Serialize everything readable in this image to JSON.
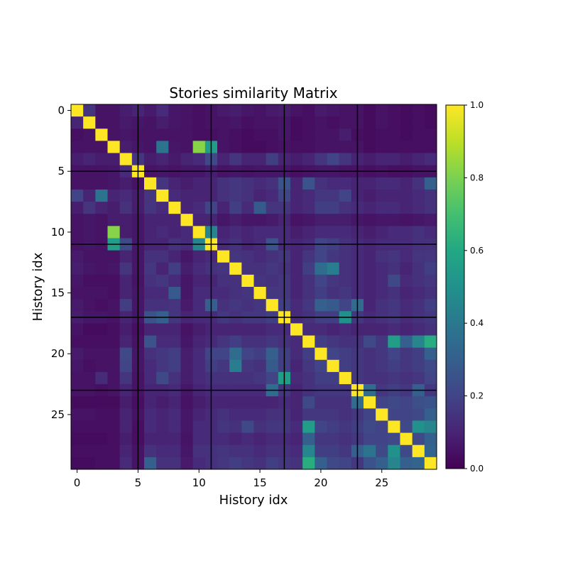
{
  "chart_data": {
    "type": "heatmap",
    "title": "Stories similarity Matrix",
    "xlabel": "History idx",
    "ylabel": "History idx",
    "x_ticks": [
      0,
      5,
      10,
      15,
      20,
      25
    ],
    "y_ticks": [
      0,
      5,
      10,
      15,
      20,
      25
    ],
    "size": 30,
    "block_size": 6,
    "colormap": "viridis",
    "clim": [
      0.0,
      1.0
    ],
    "colorbar_ticks": [
      "0.0",
      "0.2",
      "0.4",
      "0.6",
      "0.8",
      "1.0"
    ],
    "matrix": [
      [
        1.0,
        0.15,
        0.05,
        0.05,
        0.08,
        0.1,
        0.07,
        0.12,
        0.06,
        0.05,
        0.04,
        0.05,
        0.07,
        0.08,
        0.06,
        0.05,
        0.07,
        0.08,
        0.05,
        0.04,
        0.07,
        0.06,
        0.05,
        0.05,
        0.03,
        0.05,
        0.04,
        0.03,
        0.04,
        0.03
      ],
      [
        0.1,
        1.0,
        0.05,
        0.05,
        0.07,
        0.06,
        0.05,
        0.08,
        0.06,
        0.05,
        0.04,
        0.05,
        0.05,
        0.06,
        0.04,
        0.05,
        0.05,
        0.06,
        0.03,
        0.04,
        0.05,
        0.04,
        0.05,
        0.05,
        0.03,
        0.05,
        0.04,
        0.03,
        0.04,
        0.03
      ],
      [
        0.04,
        0.05,
        1.0,
        0.05,
        0.06,
        0.05,
        0.05,
        0.05,
        0.05,
        0.05,
        0.04,
        0.04,
        0.05,
        0.04,
        0.03,
        0.04,
        0.04,
        0.06,
        0.03,
        0.04,
        0.05,
        0.05,
        0.08,
        0.04,
        0.03,
        0.04,
        0.04,
        0.03,
        0.04,
        0.04
      ],
      [
        0.05,
        0.05,
        0.05,
        1.0,
        0.08,
        0.06,
        0.05,
        0.38,
        0.06,
        0.05,
        0.82,
        0.55,
        0.05,
        0.04,
        0.03,
        0.03,
        0.04,
        0.05,
        0.04,
        0.04,
        0.05,
        0.05,
        0.05,
        0.05,
        0.03,
        0.04,
        0.04,
        0.04,
        0.04,
        0.04
      ],
      [
        0.08,
        0.1,
        0.08,
        0.08,
        1.0,
        0.15,
        0.08,
        0.1,
        0.07,
        0.1,
        0.12,
        0.22,
        0.1,
        0.15,
        0.1,
        0.1,
        0.18,
        0.1,
        0.08,
        0.1,
        0.15,
        0.2,
        0.15,
        0.1,
        0.08,
        0.1,
        0.1,
        0.08,
        0.1,
        0.12
      ],
      [
        0.05,
        0.05,
        0.05,
        0.06,
        0.12,
        1.0,
        0.05,
        0.06,
        0.05,
        0.06,
        0.06,
        0.08,
        0.05,
        0.06,
        0.05,
        0.06,
        0.06,
        0.06,
        0.04,
        0.05,
        0.06,
        0.06,
        0.05,
        0.05,
        0.04,
        0.05,
        0.04,
        0.04,
        0.05,
        0.05
      ],
      [
        0.05,
        0.05,
        0.05,
        0.06,
        0.08,
        0.05,
        1.0,
        0.15,
        0.1,
        0.08,
        0.1,
        0.1,
        0.14,
        0.16,
        0.14,
        0.12,
        0.14,
        0.25,
        0.1,
        0.25,
        0.14,
        0.12,
        0.12,
        0.1,
        0.1,
        0.12,
        0.12,
        0.1,
        0.14,
        0.3
      ],
      [
        0.2,
        0.1,
        0.38,
        0.1,
        0.12,
        0.08,
        0.15,
        1.0,
        0.12,
        0.1,
        0.1,
        0.1,
        0.14,
        0.16,
        0.14,
        0.1,
        0.12,
        0.2,
        0.1,
        0.12,
        0.16,
        0.16,
        0.2,
        0.1,
        0.08,
        0.1,
        0.1,
        0.1,
        0.12,
        0.14
      ],
      [
        0.08,
        0.15,
        0.1,
        0.08,
        0.14,
        0.08,
        0.15,
        0.12,
        1.0,
        0.1,
        0.12,
        0.2,
        0.1,
        0.18,
        0.12,
        0.28,
        0.15,
        0.15,
        0.1,
        0.12,
        0.18,
        0.18,
        0.14,
        0.12,
        0.1,
        0.12,
        0.12,
        0.1,
        0.12,
        0.14
      ],
      [
        0.05,
        0.06,
        0.05,
        0.08,
        0.08,
        0.06,
        0.1,
        0.1,
        0.1,
        1.0,
        0.1,
        0.1,
        0.06,
        0.08,
        0.06,
        0.06,
        0.07,
        0.1,
        0.05,
        0.06,
        0.08,
        0.08,
        0.08,
        0.06,
        0.05,
        0.06,
        0.06,
        0.05,
        0.06,
        0.07
      ],
      [
        0.05,
        0.06,
        0.05,
        0.82,
        0.08,
        0.06,
        0.1,
        0.12,
        0.1,
        0.12,
        1.0,
        0.45,
        0.1,
        0.12,
        0.1,
        0.12,
        0.12,
        0.12,
        0.08,
        0.1,
        0.12,
        0.12,
        0.12,
        0.1,
        0.08,
        0.1,
        0.12,
        0.12,
        0.14,
        0.12
      ],
      [
        0.05,
        0.06,
        0.05,
        0.55,
        0.22,
        0.06,
        0.1,
        0.1,
        0.14,
        0.12,
        0.45,
        1.0,
        0.12,
        0.14,
        0.1,
        0.12,
        0.25,
        0.12,
        0.1,
        0.12,
        0.2,
        0.18,
        0.14,
        0.12,
        0.1,
        0.12,
        0.12,
        0.12,
        0.14,
        0.14
      ],
      [
        0.07,
        0.05,
        0.05,
        0.05,
        0.1,
        0.06,
        0.14,
        0.14,
        0.1,
        0.06,
        0.1,
        0.12,
        1.0,
        0.15,
        0.14,
        0.12,
        0.14,
        0.16,
        0.1,
        0.15,
        0.2,
        0.16,
        0.14,
        0.12,
        0.1,
        0.14,
        0.15,
        0.12,
        0.15,
        0.16
      ],
      [
        0.08,
        0.06,
        0.05,
        0.06,
        0.15,
        0.06,
        0.16,
        0.1,
        0.18,
        0.08,
        0.12,
        0.14,
        0.15,
        1.0,
        0.14,
        0.14,
        0.16,
        0.14,
        0.1,
        0.18,
        0.35,
        0.42,
        0.14,
        0.12,
        0.1,
        0.12,
        0.14,
        0.1,
        0.14,
        0.18
      ],
      [
        0.06,
        0.04,
        0.04,
        0.04,
        0.1,
        0.05,
        0.14,
        0.16,
        0.12,
        0.06,
        0.1,
        0.1,
        0.14,
        0.14,
        1.0,
        0.15,
        0.14,
        0.16,
        0.1,
        0.14,
        0.2,
        0.16,
        0.14,
        0.12,
        0.1,
        0.12,
        0.22,
        0.12,
        0.14,
        0.16
      ],
      [
        0.05,
        0.05,
        0.05,
        0.04,
        0.1,
        0.06,
        0.12,
        0.12,
        0.28,
        0.06,
        0.12,
        0.12,
        0.12,
        0.14,
        0.15,
        1.0,
        0.16,
        0.16,
        0.1,
        0.14,
        0.18,
        0.14,
        0.16,
        0.12,
        0.1,
        0.12,
        0.14,
        0.1,
        0.12,
        0.14
      ],
      [
        0.07,
        0.05,
        0.04,
        0.05,
        0.18,
        0.06,
        0.14,
        0.14,
        0.15,
        0.07,
        0.12,
        0.3,
        0.14,
        0.16,
        0.14,
        0.16,
        1.0,
        0.18,
        0.12,
        0.16,
        0.3,
        0.28,
        0.2,
        0.35,
        0.1,
        0.14,
        0.16,
        0.12,
        0.14,
        0.18
      ],
      [
        0.08,
        0.06,
        0.06,
        0.05,
        0.1,
        0.06,
        0.25,
        0.3,
        0.15,
        0.1,
        0.12,
        0.12,
        0.16,
        0.14,
        0.16,
        0.16,
        0.18,
        1.0,
        0.12,
        0.14,
        0.18,
        0.18,
        0.5,
        0.16,
        0.12,
        0.14,
        0.16,
        0.12,
        0.14,
        0.16
      ],
      [
        0.05,
        0.03,
        0.03,
        0.04,
        0.08,
        0.04,
        0.1,
        0.1,
        0.1,
        0.05,
        0.08,
        0.1,
        0.1,
        0.1,
        0.1,
        0.1,
        0.12,
        0.12,
        1.0,
        0.12,
        0.12,
        0.1,
        0.12,
        0.1,
        0.1,
        0.1,
        0.12,
        0.1,
        0.12,
        0.14
      ],
      [
        0.04,
        0.04,
        0.04,
        0.04,
        0.1,
        0.05,
        0.25,
        0.12,
        0.12,
        0.06,
        0.1,
        0.12,
        0.15,
        0.18,
        0.14,
        0.14,
        0.16,
        0.14,
        0.12,
        1.0,
        0.18,
        0.16,
        0.14,
        0.14,
        0.22,
        0.16,
        0.55,
        0.3,
        0.45,
        0.62
      ],
      [
        0.07,
        0.05,
        0.05,
        0.05,
        0.22,
        0.06,
        0.14,
        0.16,
        0.18,
        0.08,
        0.12,
        0.2,
        0.2,
        0.35,
        0.2,
        0.18,
        0.3,
        0.18,
        0.12,
        0.18,
        1.0,
        0.2,
        0.18,
        0.16,
        0.14,
        0.16,
        0.2,
        0.16,
        0.18,
        0.3
      ],
      [
        0.06,
        0.04,
        0.05,
        0.05,
        0.2,
        0.06,
        0.12,
        0.16,
        0.18,
        0.08,
        0.12,
        0.18,
        0.16,
        0.42,
        0.16,
        0.14,
        0.28,
        0.18,
        0.1,
        0.16,
        0.2,
        1.0,
        0.18,
        0.16,
        0.14,
        0.16,
        0.18,
        0.16,
        0.18,
        0.22
      ],
      [
        0.05,
        0.05,
        0.12,
        0.05,
        0.15,
        0.05,
        0.12,
        0.22,
        0.14,
        0.08,
        0.12,
        0.14,
        0.14,
        0.14,
        0.14,
        0.16,
        0.2,
        0.55,
        0.12,
        0.14,
        0.18,
        0.18,
        1.0,
        0.16,
        0.14,
        0.14,
        0.16,
        0.14,
        0.16,
        0.2
      ],
      [
        0.05,
        0.05,
        0.04,
        0.05,
        0.1,
        0.05,
        0.1,
        0.1,
        0.12,
        0.06,
        0.1,
        0.12,
        0.12,
        0.12,
        0.12,
        0.12,
        0.35,
        0.16,
        0.1,
        0.14,
        0.16,
        0.16,
        0.16,
        1.0,
        0.35,
        0.16,
        0.18,
        0.16,
        0.3,
        0.16
      ],
      [
        0.03,
        0.03,
        0.03,
        0.03,
        0.08,
        0.04,
        0.1,
        0.08,
        0.1,
        0.05,
        0.08,
        0.1,
        0.1,
        0.1,
        0.1,
        0.1,
        0.1,
        0.12,
        0.1,
        0.22,
        0.14,
        0.14,
        0.14,
        0.35,
        1.0,
        0.2,
        0.22,
        0.2,
        0.24,
        0.26
      ],
      [
        0.05,
        0.05,
        0.04,
        0.04,
        0.1,
        0.05,
        0.12,
        0.1,
        0.12,
        0.06,
        0.1,
        0.12,
        0.14,
        0.12,
        0.12,
        0.12,
        0.14,
        0.14,
        0.1,
        0.16,
        0.16,
        0.16,
        0.14,
        0.16,
        0.2,
        1.0,
        0.2,
        0.2,
        0.22,
        0.3
      ],
      [
        0.04,
        0.04,
        0.04,
        0.04,
        0.1,
        0.04,
        0.12,
        0.1,
        0.12,
        0.06,
        0.12,
        0.12,
        0.15,
        0.14,
        0.22,
        0.14,
        0.16,
        0.16,
        0.12,
        0.55,
        0.2,
        0.18,
        0.16,
        0.18,
        0.22,
        0.2,
        1.0,
        0.22,
        0.5,
        0.45
      ],
      [
        0.03,
        0.03,
        0.03,
        0.04,
        0.08,
        0.04,
        0.1,
        0.1,
        0.1,
        0.05,
        0.12,
        0.12,
        0.12,
        0.1,
        0.12,
        0.1,
        0.12,
        0.12,
        0.1,
        0.3,
        0.16,
        0.16,
        0.14,
        0.16,
        0.2,
        0.2,
        0.22,
        1.0,
        0.22,
        0.3
      ],
      [
        0.04,
        0.04,
        0.04,
        0.04,
        0.1,
        0.05,
        0.14,
        0.12,
        0.12,
        0.06,
        0.14,
        0.14,
        0.15,
        0.14,
        0.14,
        0.12,
        0.14,
        0.14,
        0.12,
        0.45,
        0.18,
        0.18,
        0.16,
        0.3,
        0.38,
        0.22,
        0.5,
        0.22,
        1.0,
        0.32
      ],
      [
        0.03,
        0.03,
        0.04,
        0.04,
        0.12,
        0.05,
        0.3,
        0.14,
        0.14,
        0.07,
        0.12,
        0.14,
        0.16,
        0.18,
        0.16,
        0.14,
        0.18,
        0.16,
        0.14,
        0.62,
        0.3,
        0.22,
        0.2,
        0.16,
        0.26,
        0.3,
        0.45,
        0.3,
        0.32,
        1.0
      ]
    ]
  }
}
